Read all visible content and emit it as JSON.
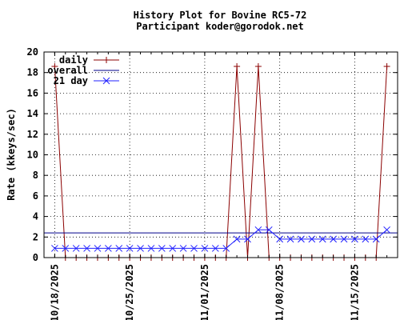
{
  "chart_data": {
    "type": "line",
    "title": "History Plot for Bovine RC5-72",
    "subtitle": "Participant koder@gorodok.net",
    "xlabel": "",
    "ylabel": "Rate (kkeys/sec)",
    "ylim": [
      0,
      20
    ],
    "yticks": [
      0,
      2,
      4,
      6,
      8,
      10,
      12,
      14,
      16,
      18,
      20
    ],
    "xlim": [
      "2025-10-17",
      "2025-11-19"
    ],
    "xticks": [
      "10/18/2025",
      "10/25/2025",
      "11/01/2025",
      "11/08/2025",
      "11/15/2025"
    ],
    "grid": true,
    "legend_position": "top-left",
    "x": [
      "2025-10-18",
      "2025-10-19",
      "2025-10-20",
      "2025-10-21",
      "2025-10-22",
      "2025-10-23",
      "2025-10-24",
      "2025-10-25",
      "2025-10-26",
      "2025-10-27",
      "2025-10-28",
      "2025-10-29",
      "2025-10-30",
      "2025-10-31",
      "2025-11-01",
      "2025-11-02",
      "2025-11-03",
      "2025-11-04",
      "2025-11-05",
      "2025-11-06",
      "2025-11-07",
      "2025-11-08",
      "2025-11-09",
      "2025-11-10",
      "2025-11-11",
      "2025-11-12",
      "2025-11-13",
      "2025-11-14",
      "2025-11-15",
      "2025-11-16",
      "2025-11-17",
      "2025-11-18"
    ],
    "series": [
      {
        "name": "daily",
        "color": "#8b0000",
        "marker": "+",
        "values": [
          18.6,
          0,
          0,
          0,
          0,
          0,
          0,
          0,
          0,
          0,
          0,
          0,
          0,
          0,
          0,
          0,
          0,
          18.6,
          0,
          18.6,
          0,
          0,
          0,
          0,
          0,
          0,
          0,
          0,
          0,
          0,
          0,
          18.6
        ]
      },
      {
        "name": "overall",
        "color": "#00008b",
        "marker": "none",
        "constant": 2.4
      },
      {
        "name": "21 day",
        "color": "#2020ff",
        "marker": "x",
        "values": [
          0.9,
          0.9,
          0.9,
          0.9,
          0.9,
          0.9,
          0.9,
          0.9,
          0.9,
          0.9,
          0.9,
          0.9,
          0.9,
          0.9,
          0.9,
          0.9,
          0.9,
          1.8,
          1.8,
          2.7,
          2.7,
          1.8,
          1.8,
          1.8,
          1.8,
          1.8,
          1.8,
          1.8,
          1.8,
          1.8,
          1.8,
          2.7
        ]
      }
    ]
  }
}
